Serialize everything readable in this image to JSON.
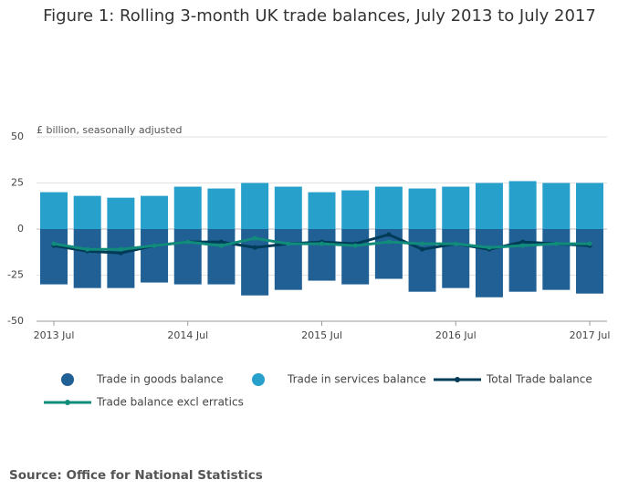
{
  "chart_data": {
    "type": "bar",
    "title": "Figure 1: Rolling 3-month UK trade balances, July 2013 to July 2017",
    "y_label": "£ billion, seasonally adjusted",
    "source": "Source: Office for National Statistics",
    "categories": [
      "2013 Jul",
      null,
      null,
      null,
      "2014 Jul",
      null,
      null,
      null,
      "2015 Jul",
      null,
      null,
      null,
      "2016 Jul",
      null,
      null,
      null,
      "2017 Jul"
    ],
    "series": [
      {
        "name": "Trade in goods balance",
        "type": "bar",
        "color": "#206095",
        "values": [
          -30,
          -32,
          -32,
          -29,
          -30,
          -30,
          -36,
          -33,
          -28,
          -30,
          -27,
          -34,
          -32,
          -37,
          -34,
          -33,
          -35
        ]
      },
      {
        "name": "Trade in services balance",
        "type": "bar",
        "color": "#27a0cc",
        "values": [
          20,
          18,
          17,
          18,
          23,
          22,
          25,
          23,
          20,
          21,
          23,
          22,
          23,
          25,
          26,
          25,
          25
        ]
      },
      {
        "name": "Total Trade balance",
        "type": "line",
        "color": "#003c57",
        "values": [
          -9,
          -12,
          -13,
          -9,
          -7,
          -7,
          -10,
          -8,
          -7,
          -8,
          -3,
          -11,
          -8,
          -11,
          -7,
          -8,
          -9
        ]
      },
      {
        "name": "Trade balance excl erratics",
        "type": "line",
        "color": "#118c7b",
        "values": [
          -8,
          -11,
          -11,
          -9,
          -7,
          -9,
          -5,
          -8,
          -8,
          -9,
          -7,
          -8,
          -8,
          -10,
          -9,
          -8,
          -8
        ]
      }
    ],
    "ylim": [
      -50,
      50
    ],
    "yticks": [
      -50,
      -25,
      0,
      25,
      50
    ],
    "grid": true
  }
}
